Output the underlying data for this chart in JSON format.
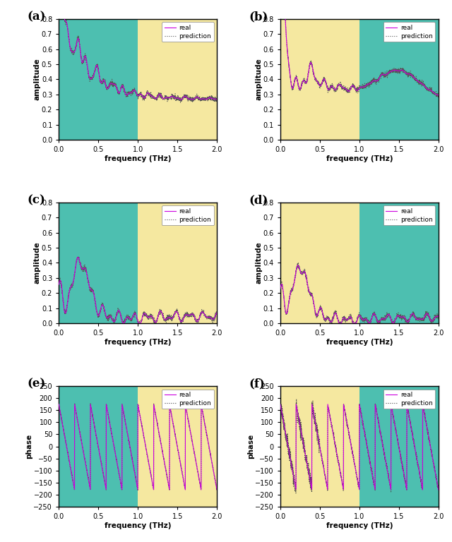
{
  "teal_color": "#4DBFB0",
  "yellow_color": "#F5E8A0",
  "real_color": "#CC00DD",
  "pred_color": "#777777",
  "xlim": [
    0.0,
    2.0
  ],
  "amp_ylim": [
    0.0,
    0.8
  ],
  "phase_ylim": [
    -250,
    250
  ],
  "split_freq": 1.0,
  "figsize": [
    6.4,
    7.68
  ],
  "dpi": 100
}
